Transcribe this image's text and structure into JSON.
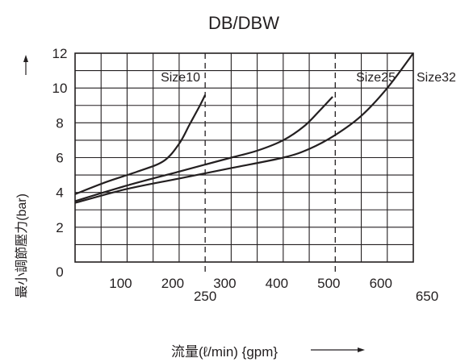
{
  "chart_data": {
    "type": "line",
    "title": "DB/DBW",
    "xlabel": "流量(ℓ/min) {gpm}",
    "ylabel": "最小調節壓力(bar)",
    "xlim": [
      0,
      650
    ],
    "ylim": [
      0,
      12
    ],
    "x_ticks": [
      100,
      200,
      300,
      400,
      500,
      600
    ],
    "x_extra_ticks": [
      250,
      650
    ],
    "y_ticks": [
      0,
      2,
      4,
      6,
      8,
      10,
      12
    ],
    "grid": true,
    "dashed_x": [
      250,
      500
    ],
    "series": [
      {
        "name": "Size10",
        "x": [
          0,
          60,
          120,
          170,
          200,
          220,
          240,
          250
        ],
        "y": [
          3.9,
          4.6,
          5.2,
          5.8,
          6.8,
          7.9,
          9.0,
          9.6
        ]
      },
      {
        "name": "Size25",
        "x": [
          0,
          100,
          200,
          300,
          350,
          400,
          440,
          470,
          495
        ],
        "y": [
          3.5,
          4.4,
          5.2,
          6.0,
          6.4,
          7.0,
          7.8,
          8.7,
          9.5
        ]
      },
      {
        "name": "Size32",
        "x": [
          0,
          100,
          200,
          300,
          400,
          450,
          500,
          550,
          600,
          650
        ],
        "y": [
          3.4,
          4.2,
          4.8,
          5.4,
          6.0,
          6.5,
          7.3,
          8.4,
          10.0,
          12.0
        ]
      }
    ]
  }
}
